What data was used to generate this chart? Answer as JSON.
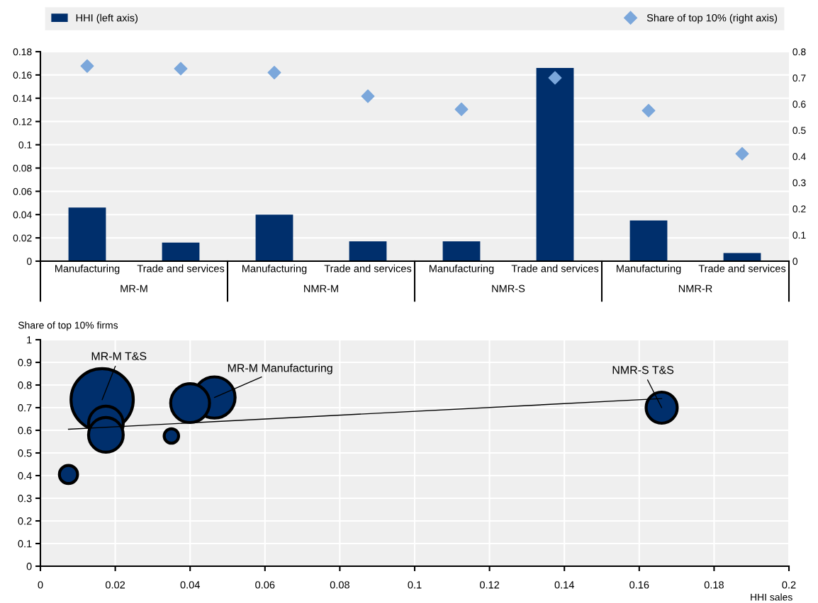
{
  "chart_data": [
    {
      "type": "bar",
      "categories": [
        "Manufacturing",
        "Trade and services",
        "Manufacturing",
        "Trade and services",
        "Manufacturing",
        "Trade and services",
        "Manufacturing",
        "Trade and services"
      ],
      "series": [
        {
          "name": "HHI (left axis)",
          "color": "#002f6c",
          "values": [
            0.046,
            0.016,
            0.04,
            0.017,
            0.017,
            0.166,
            0.035,
            0.007
          ]
        },
        {
          "name": "Share of top 10% (right axis)",
          "type": "scatter",
          "axis": "y2",
          "marker": "diamond",
          "color": "#7ba7db",
          "values": [
            0.745,
            0.735,
            0.72,
            0.63,
            0.58,
            0.7,
            0.575,
            0.41
          ]
        }
      ],
      "annotations": [
        "MR-M",
        "NMR-M",
        "NMR-S",
        "NMR-R"
      ],
      "ylim": [
        0,
        0.18
      ],
      "yticks": [
        0,
        0.02,
        0.04,
        0.06,
        0.08,
        0.1,
        0.12,
        0.14,
        0.16,
        0.18
      ],
      "y2lim": [
        0,
        0.8
      ],
      "y2ticks": [
        0,
        0.1,
        0.2,
        0.3,
        0.4,
        0.5,
        0.6,
        0.7,
        0.8
      ],
      "grid": true,
      "legend": "top"
    },
    {
      "type": "bubble",
      "xlabel": "HHI sales",
      "ylabel": "Share of top 10% firms",
      "series": [
        {
          "color": "#002f6c",
          "x": [
            0.0465,
            0.0165,
            0.04,
            0.0175,
            0.0175,
            0.035,
            0.0075,
            0.166
          ],
          "values": [
            0.745,
            0.735,
            0.72,
            0.63,
            0.58,
            0.575,
            0.405,
            0.7
          ],
          "sizes": [
            0.44,
            1,
            0.39,
            0.31,
            0.31,
            0.054,
            0.085,
            0.25
          ]
        },
        {
          "type": "line",
          "color": "#000000",
          "x": [
            0.0075,
            0.166
          ],
          "values": [
            0.605,
            0.74
          ]
        }
      ],
      "annotations": [
        {
          "text": "MR-M T&S",
          "x": 0.0165,
          "y": 0.735
        },
        {
          "text": "MR-M Manufacturing",
          "x": 0.0465,
          "y": 0.745
        },
        {
          "text": "NMR-S T&S",
          "x": 0.166,
          "y": 0.7
        }
      ],
      "xlim": [
        0,
        0.2
      ],
      "xticks": [
        0,
        0.02,
        0.04,
        0.06,
        0.08,
        0.1,
        0.12,
        0.14,
        0.16,
        0.18,
        0.2
      ],
      "ylim": [
        0,
        1
      ],
      "yticks": [
        0,
        0.1,
        0.2,
        0.3,
        0.4,
        0.5,
        0.6,
        0.7,
        0.8,
        0.9,
        1
      ],
      "grid": true
    }
  ]
}
